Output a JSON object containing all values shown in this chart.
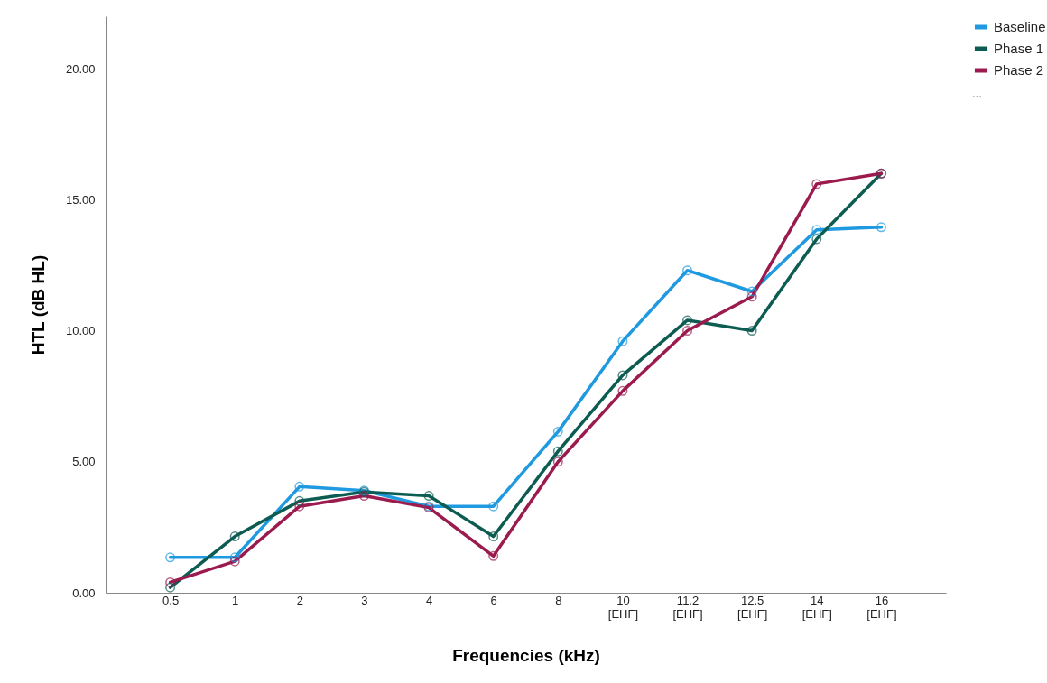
{
  "chart_data": {
    "type": "line",
    "xlabel": "Frequencies (kHz)",
    "ylabel": "HTL (dB HL)",
    "categories": [
      "0.5",
      "1",
      "2",
      "3",
      "4",
      "6",
      "8",
      "10 [EHF]",
      "11.2 [EHF]",
      "12.5 [EHF]",
      "14 [EHF]",
      "16 [EHF]"
    ],
    "series": [
      {
        "name": "Baseline",
        "color": "#1f9ae0",
        "values": [
          1.35,
          1.35,
          4.05,
          3.9,
          3.3,
          3.3,
          6.15,
          9.6,
          12.3,
          11.5,
          13.85,
          13.95
        ]
      },
      {
        "name": "Phase 1",
        "color": "#0d5c52",
        "values": [
          0.2,
          2.15,
          3.5,
          3.85,
          3.7,
          2.15,
          5.4,
          8.3,
          10.4,
          10.0,
          13.5,
          16.0
        ]
      },
      {
        "name": "Phase 2",
        "color": "#9b1b4f",
        "values": [
          0.4,
          1.2,
          3.3,
          3.7,
          3.25,
          1.4,
          5.0,
          7.7,
          10.0,
          11.3,
          15.6,
          16.0
        ]
      }
    ],
    "ylim": [
      0,
      22
    ],
    "yticks": [
      {
        "value": 0,
        "label": "0.00"
      },
      {
        "value": 5,
        "label": "5.00"
      },
      {
        "value": 10,
        "label": "10.00"
      },
      {
        "value": 15,
        "label": "15.00"
      },
      {
        "value": 20,
        "label": "20.00"
      }
    ],
    "annotations": [
      "..."
    ],
    "grid": false,
    "legend": "top right",
    "marker": "circle",
    "line_style": "solid"
  }
}
